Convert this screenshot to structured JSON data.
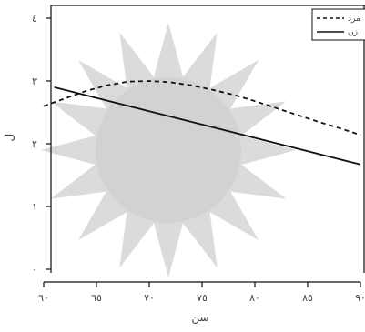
{
  "chart_data": {
    "type": "line",
    "x_ticks": [
      60,
      65,
      70,
      75,
      80,
      85,
      90
    ],
    "x_tick_labels": [
      "٦٠",
      "٦٥",
      "٧٠",
      "٧٥",
      "٨٠",
      "٨٥",
      "٩٠"
    ],
    "y_ticks": [
      0,
      1,
      2,
      3,
      4
    ],
    "y_tick_labels": [
      "٠",
      "١",
      "٢",
      "٣",
      "٤"
    ],
    "xlim": [
      60,
      90
    ],
    "ylim": [
      0,
      4
    ],
    "xlabel": "سن",
    "ylabel": "ل",
    "legend_position": "top-right",
    "series": [
      {
        "name": "مرد",
        "style": "dashed",
        "color": "#111111",
        "x": [
          60,
          62,
          64,
          66,
          68,
          70,
          72,
          74,
          76,
          78,
          80,
          82,
          84,
          86,
          88,
          90
        ],
        "y": [
          2.6,
          2.72,
          2.84,
          2.93,
          2.99,
          3.0,
          2.98,
          2.93,
          2.86,
          2.78,
          2.68,
          2.57,
          2.46,
          2.35,
          2.25,
          2.14
        ]
      },
      {
        "name": "زن",
        "style": "solid",
        "color": "#111111",
        "x": [
          61,
          90
        ],
        "y": [
          2.9,
          1.67
        ]
      }
    ]
  }
}
